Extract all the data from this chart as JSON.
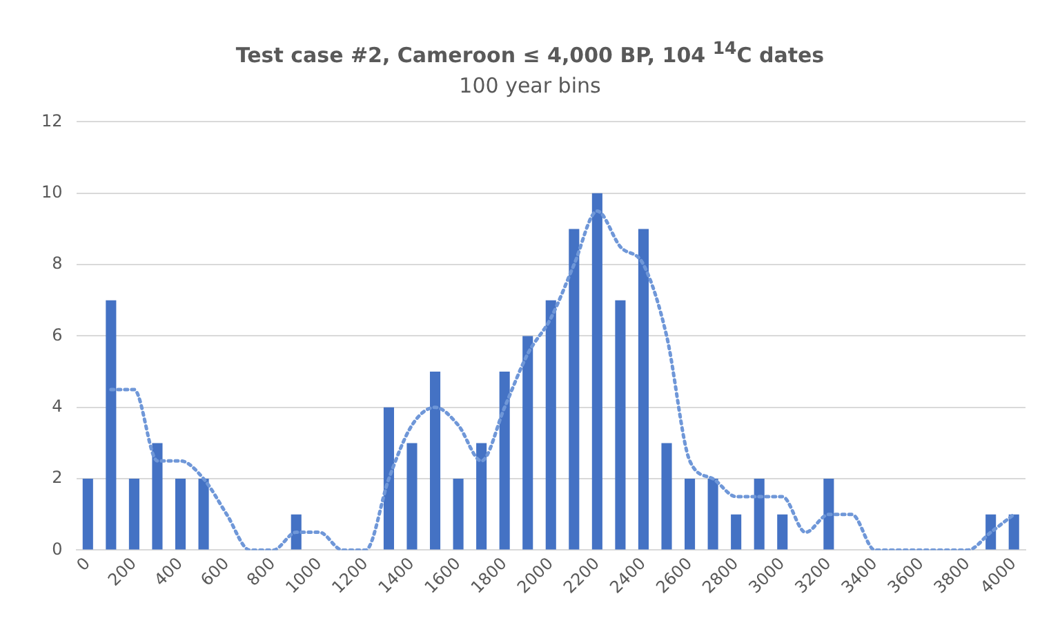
{
  "chart_data": {
    "type": "bar",
    "title": "Test case #2, Cameroon ≤ 4,000 BP, 104 $^{14}$C dates",
    "subtitle": "100 year bins",
    "categories": [
      "0",
      null,
      "200",
      null,
      "400",
      null,
      "600",
      null,
      "800",
      null,
      "1000",
      null,
      "1200",
      null,
      "1400",
      null,
      "1600",
      null,
      "1800",
      null,
      "2000",
      null,
      "2200",
      null,
      "2400",
      null,
      "2600",
      null,
      "2800",
      null,
      "3000",
      null,
      "3200",
      null,
      "3400",
      null,
      "3600",
      null,
      "3800",
      null,
      "4000"
    ],
    "series": [
      {
        "color": "#4472c4",
        "values": [
          2,
          7,
          2,
          3,
          2,
          2,
          0,
          0,
          0,
          1,
          0,
          0,
          0,
          4,
          3,
          5,
          2,
          3,
          5,
          6,
          7,
          9,
          10,
          7,
          9,
          3,
          2,
          2,
          1,
          2,
          1,
          0,
          2,
          0,
          0,
          0,
          0,
          0,
          0,
          1,
          1
        ]
      },
      {
        "type": "line",
        "color": "#6f97d8",
        "line_style": "dotted",
        "values": [
          null,
          4.5,
          4.5,
          2.5,
          2.5,
          2,
          1,
          0,
          0,
          0.5,
          0.5,
          0,
          0,
          2,
          3.5,
          4,
          3.5,
          2.5,
          4,
          5.5,
          6.5,
          8,
          9.5,
          8.5,
          8,
          6,
          2.5,
          2,
          1.5,
          1.5,
          1.5,
          0.5,
          1,
          1,
          0,
          0,
          0,
          0,
          0,
          0.5,
          1
        ]
      }
    ],
    "ylim": [
      0,
      12
    ],
    "yticks": [
      0,
      2,
      4,
      6,
      8,
      10,
      12
    ],
    "grid": "y",
    "legend": false,
    "marker": "none"
  }
}
